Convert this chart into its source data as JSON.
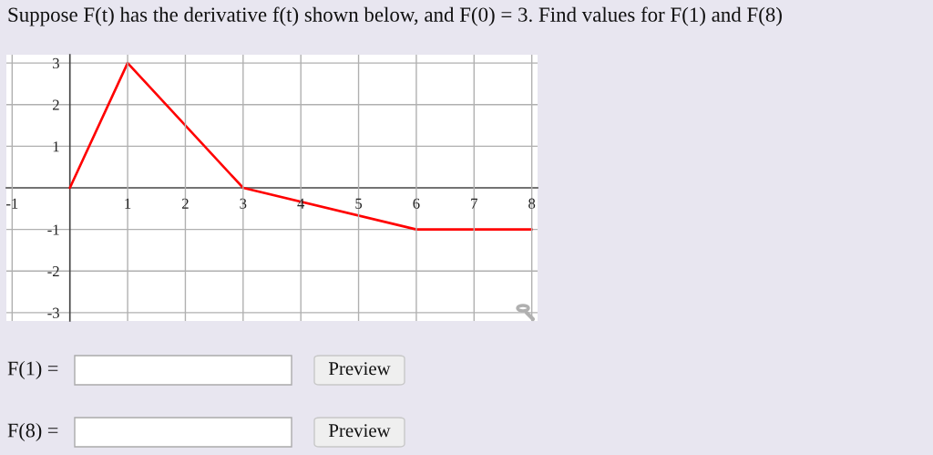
{
  "chart_data": {
    "type": "line",
    "title": "Suppose F(t) has the derivative f(t) shown below, and F(0) = 3. Find values for F(1) and F(8)",
    "x": [
      0,
      1,
      3,
      6,
      8
    ],
    "series": [
      {
        "color": "#ff0000",
        "values": [
          0,
          3,
          0,
          -1,
          -1
        ]
      }
    ],
    "xlim": [
      -1.1,
      8.1
    ],
    "ylim": [
      -3.2,
      3.2
    ],
    "xticks": [
      -1,
      1,
      2,
      3,
      4,
      5,
      6,
      7,
      8
    ],
    "yticks": [
      -3,
      -2,
      -1,
      1,
      2,
      3
    ],
    "grid": true,
    "line_style": "solid",
    "annotations": [
      "F(1) =",
      "Preview",
      "F(8) =",
      "Preview"
    ]
  }
}
